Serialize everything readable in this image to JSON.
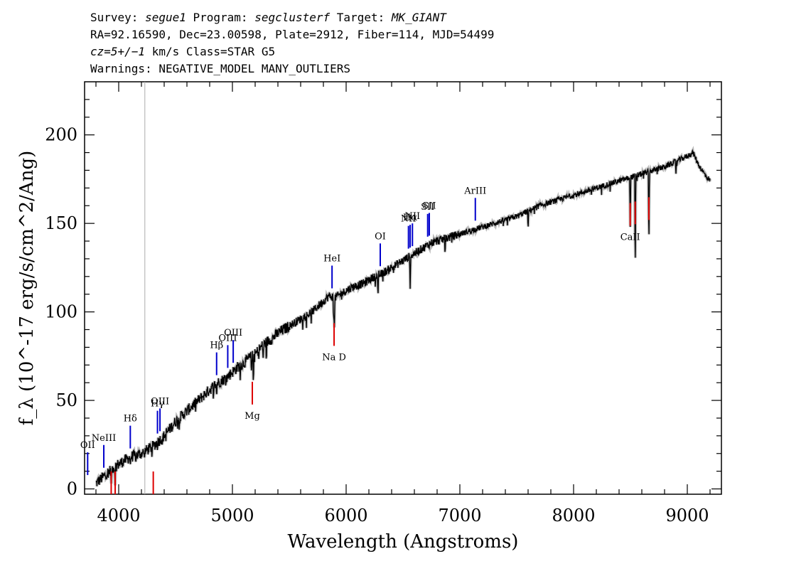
{
  "header": {
    "line1": {
      "a": "Survey: ",
      "b": "segue1",
      "c": " Program: ",
      "d": "segclusterf",
      "e": " Target: ",
      "f": "MK_GIANT"
    },
    "line2": "RA=92.16590, Dec=23.00598, Plate=2912, Fiber=114, MJD=54499",
    "line3": {
      "a": "cz=5+/−1",
      "b": " km/s Class=STAR G5"
    },
    "line4": "Warnings: NEGATIVE_MODEL MANY_OUTLIERS"
  },
  "chart_data": {
    "type": "line",
    "xlabel": "Wavelength (Angstroms)",
    "ylabel": "f_λ (10^-17 erg/s/cm^2/Ang)",
    "xlim": [
      3700,
      9300
    ],
    "ylim": [
      -3,
      230
    ],
    "x_ticks": [
      4000,
      5000,
      6000,
      7000,
      8000,
      9000
    ],
    "y_ticks": [
      0,
      50,
      100,
      150,
      200
    ],
    "grid": false,
    "marker_wavelength": 4230,
    "series": [
      {
        "color": "#000000",
        "points": [
          [
            3800,
            3
          ],
          [
            3850,
            6
          ],
          [
            3900,
            9
          ],
          [
            3950,
            12
          ],
          [
            4000,
            14
          ],
          [
            4050,
            16
          ],
          [
            4100,
            18
          ],
          [
            4150,
            19
          ],
          [
            4200,
            20
          ],
          [
            4250,
            22
          ],
          [
            4300,
            24
          ],
          [
            4350,
            27
          ],
          [
            4400,
            30
          ],
          [
            4450,
            34
          ],
          [
            4500,
            38
          ],
          [
            4550,
            41
          ],
          [
            4600,
            44
          ],
          [
            4650,
            47
          ],
          [
            4700,
            50
          ],
          [
            4750,
            53
          ],
          [
            4800,
            56
          ],
          [
            4850,
            59
          ],
          [
            4900,
            61
          ],
          [
            4950,
            63
          ],
          [
            5000,
            66
          ],
          [
            5050,
            69
          ],
          [
            5100,
            71
          ],
          [
            5150,
            74
          ],
          [
            5200,
            76
          ],
          [
            5250,
            80
          ],
          [
            5300,
            83
          ],
          [
            5350,
            85
          ],
          [
            5400,
            88
          ],
          [
            5450,
            90
          ],
          [
            5500,
            92
          ],
          [
            5550,
            94
          ],
          [
            5600,
            96
          ],
          [
            5650,
            98
          ],
          [
            5700,
            100
          ],
          [
            5750,
            103
          ],
          [
            5800,
            106
          ],
          [
            5850,
            109
          ],
          [
            5900,
            108
          ],
          [
            5950,
            110
          ],
          [
            6000,
            112
          ],
          [
            6050,
            114
          ],
          [
            6100,
            115
          ],
          [
            6150,
            116
          ],
          [
            6200,
            118
          ],
          [
            6250,
            120
          ],
          [
            6300,
            121
          ],
          [
            6350,
            123
          ],
          [
            6400,
            125
          ],
          [
            6450,
            127
          ],
          [
            6500,
            129
          ],
          [
            6550,
            131
          ],
          [
            6600,
            133
          ],
          [
            6650,
            135
          ],
          [
            6700,
            137
          ],
          [
            6750,
            139
          ],
          [
            6800,
            140
          ],
          [
            6850,
            141
          ],
          [
            6900,
            142
          ],
          [
            6950,
            143
          ],
          [
            7000,
            144
          ],
          [
            7100,
            146
          ],
          [
            7200,
            148
          ],
          [
            7300,
            150
          ],
          [
            7400,
            152
          ],
          [
            7500,
            154
          ],
          [
            7600,
            157
          ],
          [
            7700,
            160
          ],
          [
            7800,
            162
          ],
          [
            7900,
            164
          ],
          [
            8000,
            166
          ],
          [
            8100,
            168
          ],
          [
            8200,
            170
          ],
          [
            8300,
            172
          ],
          [
            8400,
            174
          ],
          [
            8500,
            176
          ],
          [
            8600,
            178
          ],
          [
            8700,
            180
          ],
          [
            8800,
            182
          ],
          [
            8900,
            185
          ],
          [
            9000,
            188
          ],
          [
            9050,
            190
          ],
          [
            9100,
            183
          ],
          [
            9150,
            178
          ],
          [
            9200,
            174
          ]
        ],
        "absorption": [
          [
            3934,
            1
          ],
          [
            3968,
            2
          ],
          [
            4102,
            13
          ],
          [
            4227,
            17
          ],
          [
            4340,
            22
          ],
          [
            4383,
            24
          ],
          [
            4861,
            52
          ],
          [
            5167,
            65
          ],
          [
            5184,
            58
          ],
          [
            5270,
            74
          ],
          [
            5890,
            94
          ],
          [
            5896,
            87
          ],
          [
            6280,
            108
          ],
          [
            6563,
            113
          ],
          [
            6870,
            132
          ],
          [
            7600,
            146
          ],
          [
            8498,
            148
          ],
          [
            8542,
            119
          ],
          [
            8662,
            135
          ],
          [
            8900,
            178
          ]
        ]
      }
    ],
    "emission_lines": [
      {
        "label": "OII",
        "wavelength": 3727
      },
      {
        "label": "NeIII",
        "wavelength": 3869
      },
      {
        "label": "Hδ",
        "wavelength": 4102
      },
      {
        "label": "Hγ",
        "wavelength": 4341
      },
      {
        "label": "OIII",
        "wavelength": 4363
      },
      {
        "label": "Hβ",
        "wavelength": 4861
      },
      {
        "label": "OIII",
        "wavelength": 4959
      },
      {
        "label": "OIII",
        "wavelength": 5007
      },
      {
        "label": "HeI",
        "wavelength": 5876
      },
      {
        "label": "OI",
        "wavelength": 6300
      },
      {
        "label": "NII",
        "wavelength": 6548
      },
      {
        "label": "Hα",
        "wavelength": 6563
      },
      {
        "label": "NII",
        "wavelength": 6583
      },
      {
        "label": "SII",
        "wavelength": 6717
      },
      {
        "label": "SII",
        "wavelength": 6731
      },
      {
        "label": "ArIII",
        "wavelength": 7136
      }
    ],
    "absorption_lines": [
      {
        "label": "",
        "wavelength": 3934
      },
      {
        "label": "",
        "wavelength": 3969
      },
      {
        "label": "",
        "wavelength": 4304
      },
      {
        "label": "Mg",
        "wavelength": 5175
      },
      {
        "label": "Na D",
        "wavelength": 5894
      },
      {
        "label": "CaII",
        "wavelength": 8498
      },
      {
        "label": "",
        "wavelength": 8542
      },
      {
        "label": "",
        "wavelength": 8662
      }
    ],
    "colors": {
      "spectrum": "#000000",
      "error": "#bbbbbb",
      "emission": "#0000cc",
      "absorption": "#dd0000",
      "marker": "#aaaaaa"
    }
  }
}
